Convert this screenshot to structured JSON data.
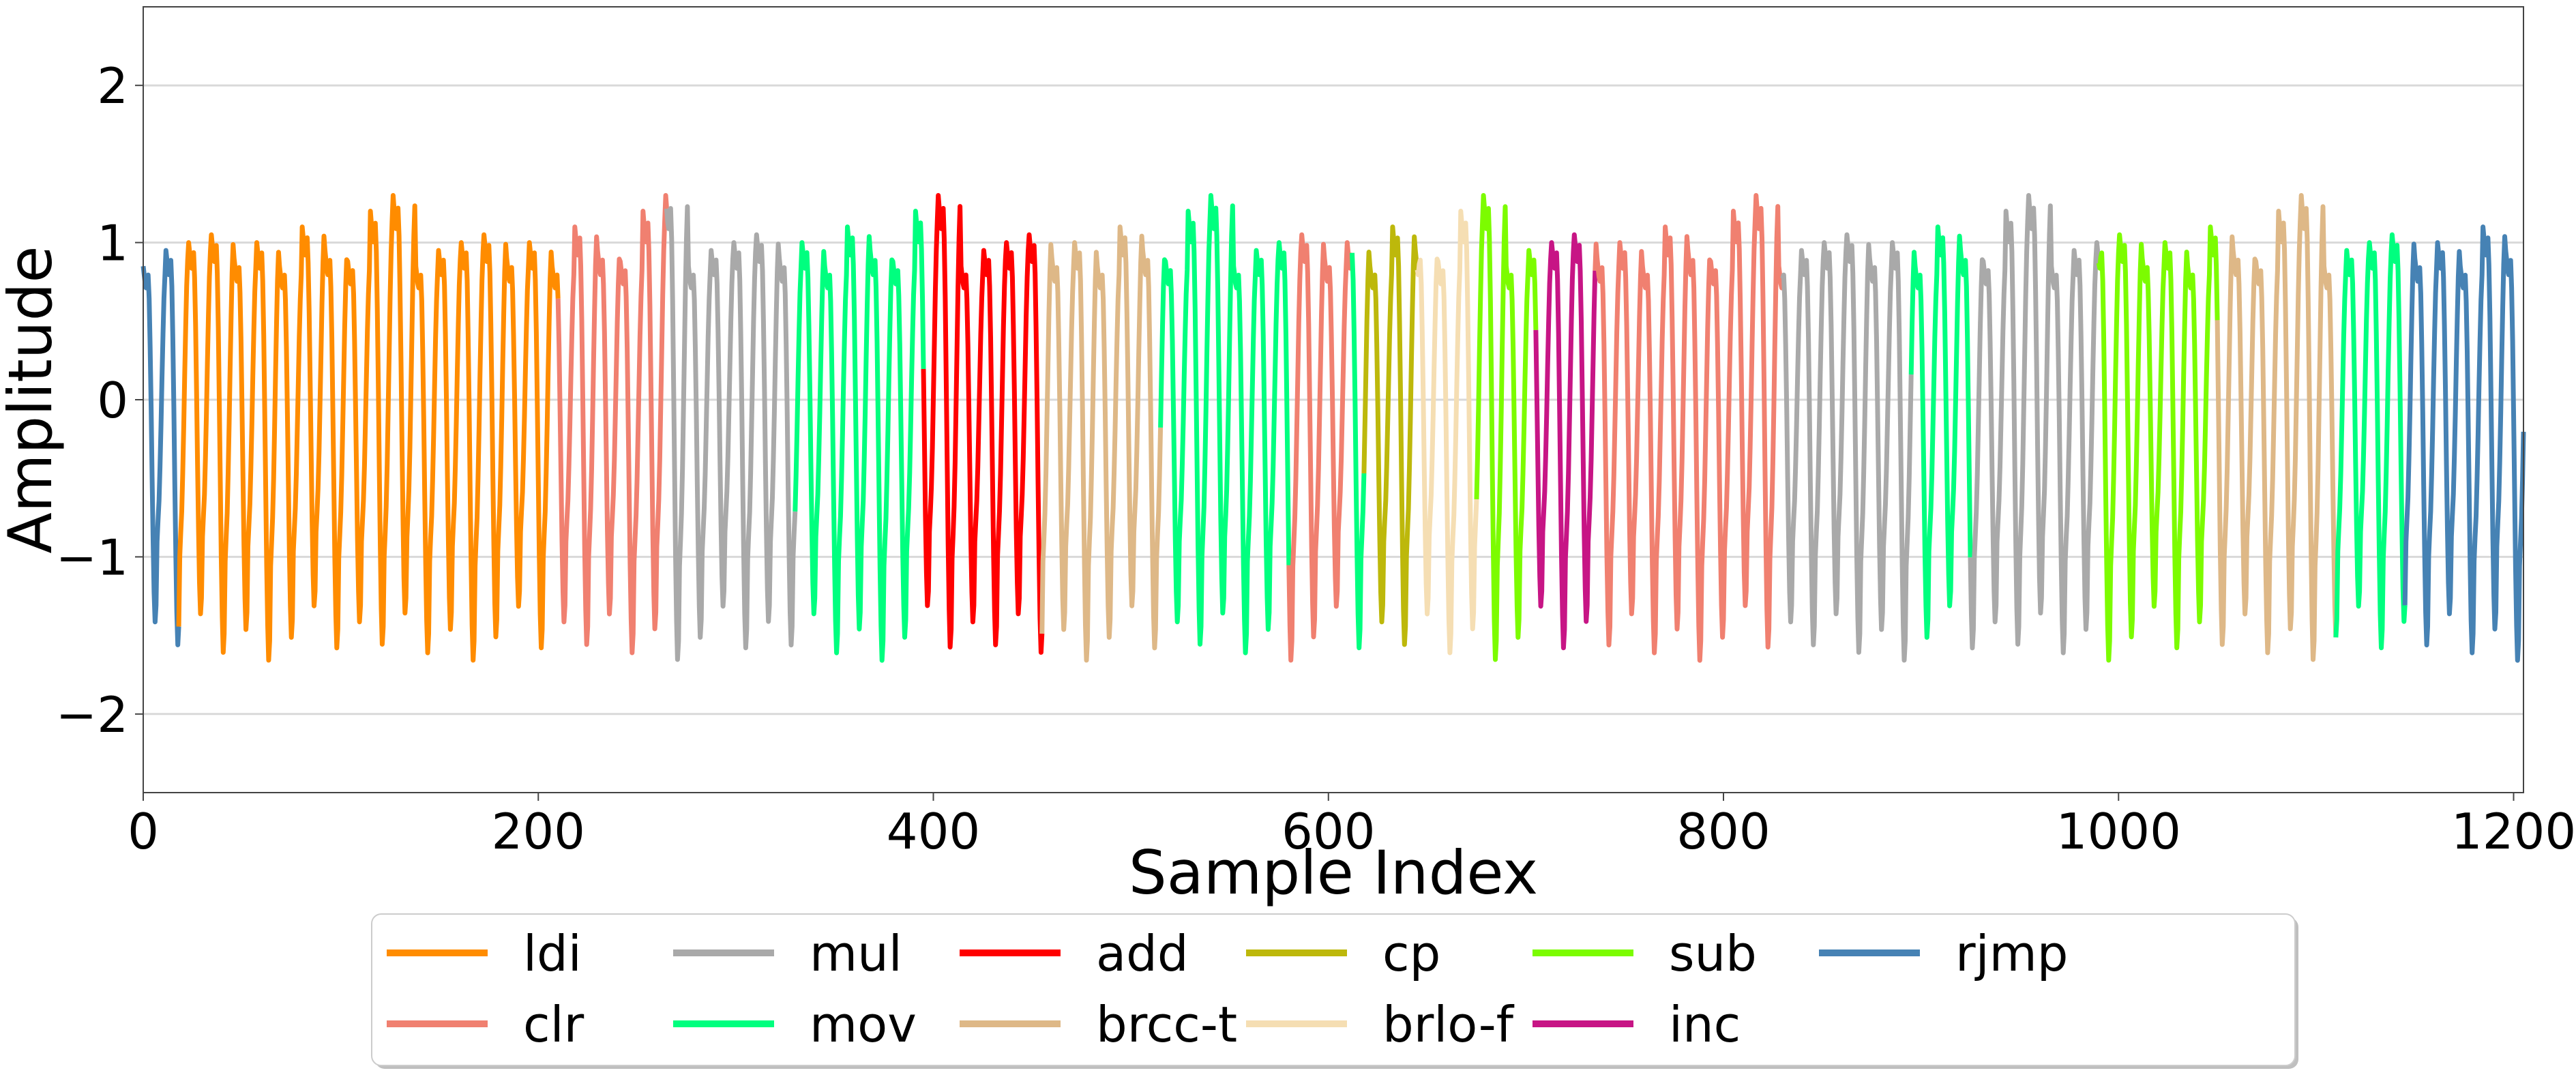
{
  "chart_data": {
    "type": "line",
    "title": "",
    "xlabel": "Sample Index",
    "ylabel": "Amplitude",
    "xlim": [
      0,
      1205
    ],
    "ylim": [
      -2.5,
      2.5
    ],
    "x_ticks": [
      0,
      200,
      400,
      600,
      800,
      1000,
      1200
    ],
    "x_tick_labels": [
      "0",
      "200",
      "400",
      "600",
      "800",
      "1000",
      "1200"
    ],
    "y_ticks": [
      -2,
      -1,
      0,
      1,
      2
    ],
    "y_tick_labels": [
      "−2",
      "−1",
      "0",
      "1",
      "2"
    ],
    "grid": "horizontal",
    "legend": {
      "placement": "bottom-center (below axes)",
      "columns": 6
    },
    "series": [
      {
        "name": "ldi",
        "color": "#ff8c00"
      },
      {
        "name": "clr",
        "color": "#f08070"
      },
      {
        "name": "mul",
        "color": "#a9a9a9"
      },
      {
        "name": "mov",
        "color": "#00ff7f"
      },
      {
        "name": "add",
        "color": "#ff0000"
      },
      {
        "name": "brcc-t",
        "color": "#deb887"
      },
      {
        "name": "cp",
        "color": "#bdb80b"
      },
      {
        "name": "brlo-f",
        "color": "#f5deb3"
      },
      {
        "name": "sub",
        "color": "#7cfc00"
      },
      {
        "name": "inc",
        "color": "#c71585"
      },
      {
        "name": "rjmp",
        "color": "#4682b4"
      }
    ],
    "segments": [
      {
        "series": "rjmp",
        "x": [
          0,
          18
        ]
      },
      {
        "series": "ldi",
        "x": [
          18,
          210
        ]
      },
      {
        "series": "clr",
        "x": [
          210,
          265
        ]
      },
      {
        "series": "mul",
        "x": [
          265,
          330
        ]
      },
      {
        "series": "mov",
        "x": [
          330,
          395
        ]
      },
      {
        "series": "add",
        "x": [
          395,
          455
        ]
      },
      {
        "series": "brcc-t",
        "x": [
          455,
          515
        ]
      },
      {
        "series": "mov",
        "x": [
          515,
          580
        ]
      },
      {
        "series": "clr",
        "x": [
          580,
          612
        ]
      },
      {
        "series": "mov",
        "x": [
          612,
          618
        ]
      },
      {
        "series": "cp",
        "x": [
          618,
          645
        ]
      },
      {
        "series": "brlo-f",
        "x": [
          645,
          675
        ]
      },
      {
        "series": "sub",
        "x": [
          675,
          705
        ]
      },
      {
        "series": "inc",
        "x": [
          705,
          735
        ]
      },
      {
        "series": "clr",
        "x": [
          735,
          830
        ]
      },
      {
        "series": "mul",
        "x": [
          830,
          895
        ]
      },
      {
        "series": "mov",
        "x": [
          895,
          925
        ]
      },
      {
        "series": "mul",
        "x": [
          925,
          990
        ]
      },
      {
        "series": "sub",
        "x": [
          990,
          1050
        ]
      },
      {
        "series": "brcc-t",
        "x": [
          1050,
          1110
        ]
      },
      {
        "series": "mov",
        "x": [
          1110,
          1145
        ]
      },
      {
        "series": "rjmp",
        "x": [
          1145,
          1205
        ]
      }
    ],
    "waveform": {
      "cycle_period": 11.5,
      "peaks": [
        0.85,
        0.95,
        1.0,
        1.05,
        0.9,
        1.0,
        0.85,
        1.1,
        0.95,
        0.88,
        1.2,
        1.3
      ],
      "troughs": [
        -1.45,
        -1.6,
        -1.4,
        -1.65,
        -1.5,
        -1.7,
        -1.55,
        -1.35,
        -1.62
      ]
    }
  }
}
